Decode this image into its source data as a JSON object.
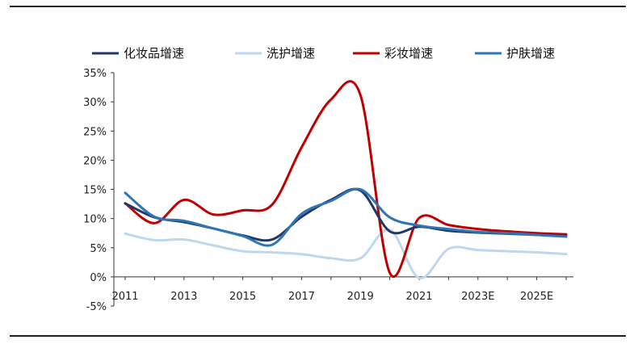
{
  "chart_data": {
    "type": "line",
    "title": "",
    "xlabel": "",
    "ylabel": "",
    "x": [
      2011,
      2012,
      2013,
      2014,
      2015,
      2016,
      2017,
      2018,
      2019,
      2020,
      2021,
      2022,
      2023,
      2024,
      2025,
      2026
    ],
    "x_tick_labels": [
      "2011",
      "2013",
      "2015",
      "2017",
      "2019",
      "2021",
      "2023E",
      "2025E"
    ],
    "y_tick_labels": [
      "-5%",
      "0%",
      "5%",
      "10%",
      "15%",
      "20%",
      "25%",
      "30%",
      "35%"
    ],
    "ylim": [
      -5,
      35
    ],
    "grid": false,
    "legend_position": "top",
    "series": [
      {
        "name": "化妆品增速",
        "color": "#1f3868",
        "values": [
          12.6,
          10.2,
          9.4,
          8.3,
          7.1,
          6.4,
          10.3,
          13.2,
          14.8,
          7.8,
          8.6,
          7.9,
          7.6,
          7.4,
          7.2,
          7.0
        ]
      },
      {
        "name": "洗护增速",
        "color": "#bdd7ee",
        "values": [
          7.4,
          6.3,
          6.4,
          5.4,
          4.4,
          4.2,
          3.9,
          3.2,
          3.2,
          8.1,
          -0.2,
          4.8,
          4.6,
          4.4,
          4.2,
          3.9
        ]
      },
      {
        "name": "彩妆增速",
        "color": "#c00000",
        "values": [
          12.6,
          9.2,
          13.2,
          10.7,
          11.4,
          12.4,
          22.2,
          30.4,
          31.2,
          0.7,
          10.1,
          8.9,
          8.2,
          7.8,
          7.5,
          7.3
        ]
      },
      {
        "name": "护肤增速",
        "color": "#2e75b6",
        "values": [
          14.4,
          10.3,
          9.6,
          8.3,
          7.0,
          5.5,
          10.8,
          13.0,
          15.0,
          10.2,
          8.8,
          8.2,
          7.7,
          7.5,
          7.2,
          6.9
        ]
      }
    ]
  }
}
